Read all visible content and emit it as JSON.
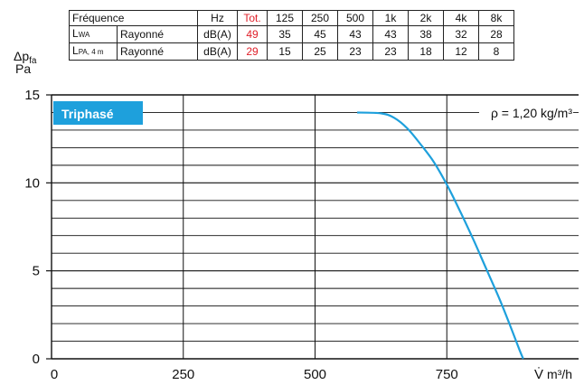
{
  "table": {
    "headers": [
      "Fréquence",
      "Hz",
      "Tot.",
      "125",
      "250",
      "500",
      "1k",
      "2k",
      "4k",
      "8k"
    ],
    "rows": [
      {
        "label": "L",
        "sub": "WA",
        "type": "Rayonné",
        "unit": "dB(A)",
        "tot": "49",
        "values": [
          "35",
          "45",
          "43",
          "43",
          "38",
          "32",
          "28"
        ]
      },
      {
        "label": "L",
        "sub": "PA, 4 m",
        "type": "Rayonné",
        "unit": "dB(A)",
        "tot": "29",
        "values": [
          "15",
          "25",
          "23",
          "23",
          "18",
          "12",
          "8"
        ]
      }
    ]
  },
  "chart_data": {
    "type": "line",
    "ylabel_symbol": "Δp",
    "ylabel_sub": "fa",
    "ylabel_unit": "Pa",
    "xlabel_symbol": "V̇",
    "xlabel_unit": "m³/h",
    "xlim": [
      0,
      1000
    ],
    "ylim": [
      0,
      15
    ],
    "x_ticks": [
      "0",
      "250",
      "500",
      "750"
    ],
    "y_ticks": [
      "0",
      "5",
      "10",
      "15"
    ],
    "badge": "Triphasé",
    "annotation": "ρ = 1,20 kg/m³",
    "grid": true,
    "series": [
      {
        "color": "#1ea0dc",
        "points": [
          [
            580,
            14.0
          ],
          [
            625,
            13.95
          ],
          [
            650,
            13.7
          ],
          [
            675,
            13.1
          ],
          [
            700,
            12.2
          ],
          [
            725,
            11.2
          ],
          [
            750,
            9.9
          ],
          [
            775,
            8.4
          ],
          [
            800,
            6.8
          ],
          [
            825,
            5.1
          ],
          [
            850,
            3.4
          ],
          [
            870,
            1.9
          ],
          [
            888,
            0.5
          ],
          [
            895,
            0.0
          ]
        ]
      }
    ]
  }
}
